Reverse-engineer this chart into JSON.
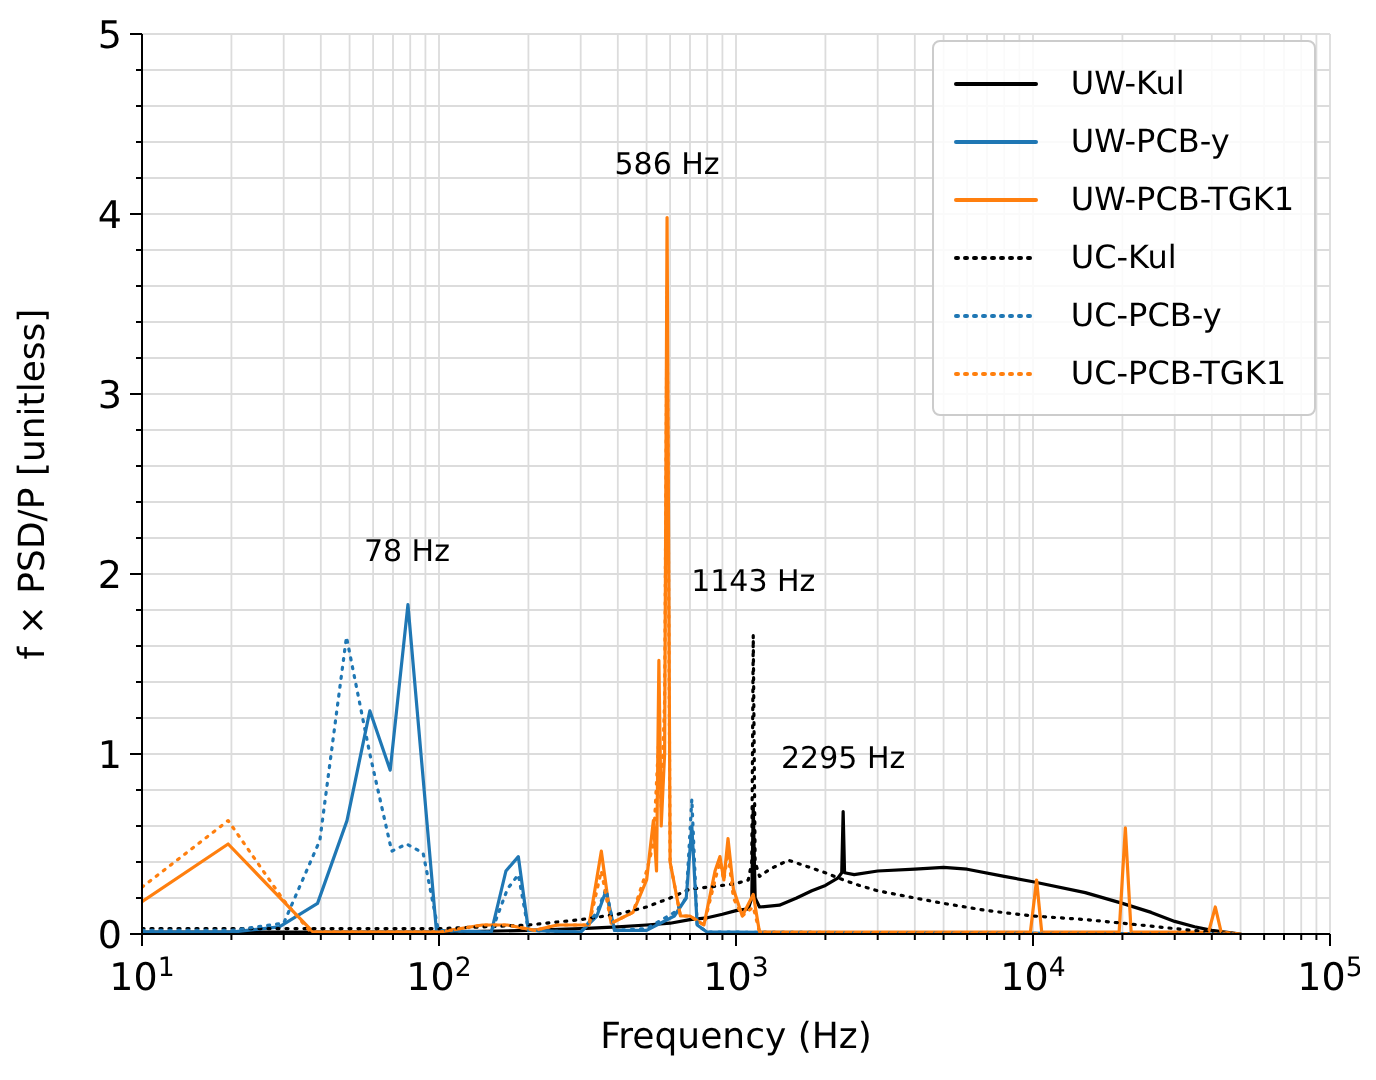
{
  "chart_data": {
    "type": "line",
    "xlabel": "Frequency (Hz)",
    "ylabel": "f × PSD/P [unitless]",
    "log": "x",
    "grid": true,
    "legend": "top right",
    "xlim": [
      10,
      100000
    ],
    "ylim": [
      0,
      5
    ],
    "xticks": [
      {
        "value": 10,
        "label": "10$^{1}$"
      },
      {
        "value": 20,
        "label": null
      },
      {
        "value": 30,
        "label": null
      },
      {
        "value": 40,
        "label": null
      },
      {
        "value": 50,
        "label": null
      },
      {
        "value": 60,
        "label": null
      },
      {
        "value": 70,
        "label": null
      },
      {
        "value": 80,
        "label": null
      },
      {
        "value": 90,
        "label": null
      },
      {
        "value": 100,
        "label": "10$^{2}$"
      },
      {
        "value": 200,
        "label": null
      },
      {
        "value": 300,
        "label": null
      },
      {
        "value": 400,
        "label": null
      },
      {
        "value": 500,
        "label": null
      },
      {
        "value": 600,
        "label": null
      },
      {
        "value": 700,
        "label": null
      },
      {
        "value": 800,
        "label": null
      },
      {
        "value": 900,
        "label": null
      },
      {
        "value": 1000,
        "label": "10$^{3}$"
      },
      {
        "value": 2000,
        "label": null
      },
      {
        "value": 3000,
        "label": null
      },
      {
        "value": 4000,
        "label": null
      },
      {
        "value": 5000,
        "label": null
      },
      {
        "value": 6000,
        "label": null
      },
      {
        "value": 7000,
        "label": null
      },
      {
        "value": 8000,
        "label": null
      },
      {
        "value": 9000,
        "label": null
      },
      {
        "value": 10000,
        "label": "10$^{4}$"
      },
      {
        "value": 20000,
        "label": null
      },
      {
        "value": 30000,
        "label": null
      },
      {
        "value": 40000,
        "label": null
      },
      {
        "value": 50000,
        "label": null
      },
      {
        "value": 60000,
        "label": null
      },
      {
        "value": 70000,
        "label": null
      },
      {
        "value": 80000,
        "label": null
      },
      {
        "value": 90000,
        "label": null
      },
      {
        "value": 100000,
        "label": "10$^{5}$"
      }
    ],
    "yticks": [
      0,
      {
        "value": 0.2,
        "label": null
      },
      {
        "value": 0.4,
        "label": null
      },
      {
        "value": 0.6,
        "label": null
      },
      {
        "value": 0.8,
        "label": null
      },
      1,
      {
        "value": 1.2,
        "label": null
      },
      {
        "value": 1.4,
        "label": null
      },
      {
        "value": 1.6,
        "label": null
      },
      {
        "value": 1.8,
        "label": null
      },
      2,
      {
        "value": 2.2,
        "label": null
      },
      {
        "value": 2.4,
        "label": null
      },
      {
        "value": 2.6,
        "label": null
      },
      {
        "value": 2.8,
        "label": null
      },
      3,
      {
        "value": 3.2,
        "label": null
      },
      {
        "value": 3.4,
        "label": null
      },
      {
        "value": 3.6,
        "label": null
      },
      {
        "value": 3.8,
        "label": null
      },
      4,
      {
        "value": 4.2,
        "label": null
      },
      {
        "value": 4.4,
        "label": null
      },
      {
        "value": 4.6,
        "label": null
      },
      {
        "value": 4.8,
        "label": null
      },
      5
    ],
    "annotations": [
      {
        "text": "78 Hz",
        "x": 78,
        "y": 1.83
      },
      {
        "text": "586 Hz",
        "x": 586,
        "y": 3.98
      },
      {
        "text": "1143 Hz",
        "x": 1143,
        "y": 1.66
      },
      {
        "text": "2295 Hz",
        "x": 2295,
        "y": 0.68
      }
    ],
    "series": [
      {
        "name": "UW-Kul",
        "color": "#000000",
        "line_style": "solid",
        "x": [
          10,
          30,
          100,
          200,
          300,
          400,
          500,
          600,
          700,
          800,
          900,
          1000,
          1100,
          1130,
          1143,
          1160,
          1200,
          1400,
          1600,
          1800,
          2000,
          2200,
          2270,
          2295,
          2320,
          2500,
          3000,
          4000,
          5000,
          6000,
          8000,
          10000,
          15000,
          20000,
          25000,
          30000,
          35000,
          40000,
          50000
        ],
        "values": [
          0.01,
          0.01,
          0.01,
          0.02,
          0.03,
          0.04,
          0.05,
          0.06,
          0.08,
          0.09,
          0.11,
          0.13,
          0.14,
          0.2,
          0.71,
          0.2,
          0.15,
          0.16,
          0.2,
          0.24,
          0.27,
          0.31,
          0.34,
          0.68,
          0.34,
          0.33,
          0.35,
          0.36,
          0.37,
          0.36,
          0.32,
          0.29,
          0.23,
          0.17,
          0.12,
          0.07,
          0.04,
          0.02,
          0
        ]
      },
      {
        "name": "UW-PCB-y",
        "color": "#1f77b4",
        "line_style": "solid",
        "x": [
          10,
          20,
          29,
          39,
          49,
          58.5,
          68.5,
          78.6,
          98,
          150,
          168,
          185,
          200,
          300,
          340,
          365,
          390,
          500,
          620,
          680,
          710,
          740,
          800,
          1000,
          50000
        ],
        "values": [
          0.01,
          0.01,
          0.04,
          0.17,
          0.63,
          1.24,
          0.91,
          1.83,
          0.02,
          0.01,
          0.35,
          0.43,
          0.02,
          0.01,
          0.1,
          0.24,
          0.02,
          0.02,
          0.1,
          0.2,
          0.6,
          0.05,
          0.01,
          0.01,
          0
        ]
      },
      {
        "name": "UW-PCB-TGK1",
        "color": "#ff7f0e",
        "line_style": "solid",
        "x": [
          10,
          19.5,
          37.7,
          100,
          140,
          170,
          210,
          250,
          320,
          352,
          380,
          450,
          500,
          527,
          540,
          550,
          560,
          575,
          586,
          600,
          650,
          700,
          780,
          850,
          883,
          910,
          940,
          980,
          1050,
          1143,
          1200,
          2000,
          9800,
          10280,
          10700,
          19500,
          20460,
          21400,
          39000,
          41100,
          43000,
          50000
        ],
        "values": [
          0.18,
          0.5,
          0.01,
          0.01,
          0.05,
          0.05,
          0.02,
          0.05,
          0.05,
          0.46,
          0.06,
          0.12,
          0.3,
          0.63,
          0.35,
          1.52,
          0.6,
          1.0,
          3.98,
          0.4,
          0.1,
          0.1,
          0.05,
          0.35,
          0.43,
          0.3,
          0.53,
          0.25,
          0.1,
          0.22,
          0.01,
          0.01,
          0.01,
          0.3,
          0.01,
          0.01,
          0.59,
          0.01,
          0.01,
          0.15,
          0.01,
          0
        ]
      },
      {
        "name": "UC-Kul",
        "color": "#000000",
        "line_style": "dotted",
        "x": [
          10,
          30,
          100,
          200,
          300,
          400,
          500,
          600,
          700,
          800,
          900,
          1000,
          1100,
          1130,
          1143,
          1160,
          1200,
          1300,
          1500,
          1700,
          2000,
          2300,
          2600,
          3000,
          4000,
          5000,
          7000,
          10000,
          15000,
          20000,
          30000,
          40000,
          50000
        ],
        "values": [
          0.03,
          0.03,
          0.03,
          0.05,
          0.08,
          0.11,
          0.15,
          0.2,
          0.25,
          0.26,
          0.27,
          0.28,
          0.3,
          0.4,
          1.66,
          0.4,
          0.32,
          0.36,
          0.41,
          0.38,
          0.34,
          0.3,
          0.27,
          0.24,
          0.2,
          0.17,
          0.13,
          0.1,
          0.08,
          0.06,
          0.03,
          0.01,
          0
        ]
      },
      {
        "name": "UC-PCB-y",
        "color": "#1f77b4",
        "line_style": "dotted",
        "x": [
          10,
          20,
          30,
          39.7,
          48.8,
          58.5,
          69.3,
          77.8,
          88.4,
          99.5,
          150,
          170,
          185,
          200,
          300,
          340,
          365,
          390,
          500,
          620,
          680,
          710,
          740,
          800,
          1000,
          50000
        ],
        "values": [
          0.02,
          0.02,
          0.06,
          0.52,
          1.65,
          1.0,
          0.46,
          0.5,
          0.45,
          0.02,
          0.01,
          0.25,
          0.33,
          0.02,
          0.01,
          0.12,
          0.25,
          0.02,
          0.03,
          0.12,
          0.2,
          0.75,
          0.05,
          0.01,
          0.01,
          0
        ]
      },
      {
        "name": "UC-PCB-TGK1",
        "color": "#ff7f0e",
        "line_style": "dotted",
        "x": [
          10,
          19.5,
          29.9,
          37,
          100,
          140,
          170,
          210,
          250,
          320,
          352,
          380,
          450,
          500,
          527,
          550,
          560,
          575,
          586,
          600,
          650,
          700,
          780,
          850,
          883,
          910,
          940,
          980,
          1050,
          1143,
          1200,
          50000
        ],
        "values": [
          0.26,
          0.63,
          0.19,
          0.01,
          0.01,
          0.05,
          0.05,
          0.02,
          0.05,
          0.05,
          0.35,
          0.06,
          0.12,
          0.35,
          0.5,
          1.1,
          0.7,
          1.3,
          3.6,
          0.4,
          0.1,
          0.1,
          0.05,
          0.3,
          0.4,
          0.3,
          0.45,
          0.2,
          0.1,
          0.15,
          0.01,
          0
        ]
      }
    ]
  }
}
